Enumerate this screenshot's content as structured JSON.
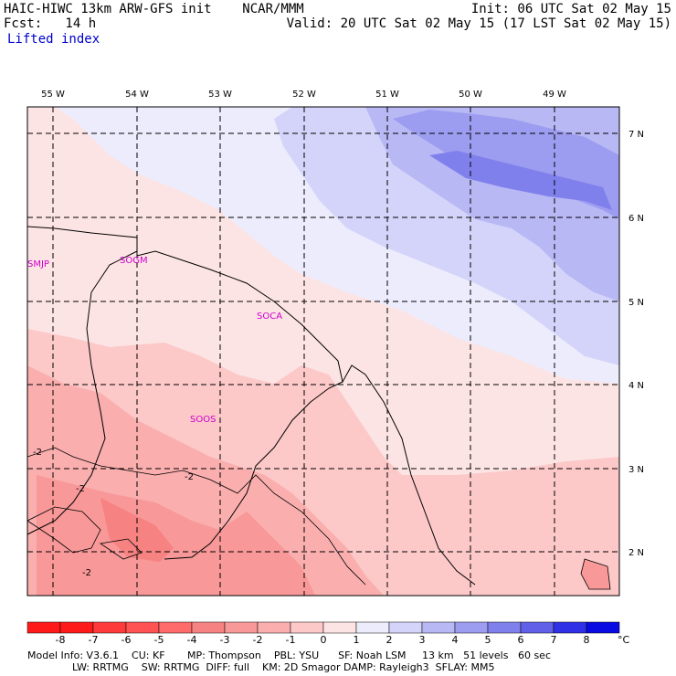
{
  "header": {
    "model_line": "HAIC-HIWC 13km ARW-GFS init    NCAR/MMM",
    "fcst_line": "Fcst:   14 h",
    "field_name": "Lifted index",
    "init_line": "Init: 06 UTC Sat 02 May 15",
    "valid_line": "Valid: 20 UTC Sat 02 May 15 (17 LST Sat 02 May 15)"
  },
  "map": {
    "lon_labels": [
      "55 W",
      "54 W",
      "53 W",
      "52 W",
      "51 W",
      "50 W",
      "49 W"
    ],
    "lat_labels": [
      "7 N",
      "6 N",
      "5 N",
      "4 N",
      "3 N",
      "2 N"
    ],
    "stations": [
      "SMJP",
      "SOGM",
      "SOCA",
      "SOOS"
    ],
    "contour_labels": [
      "-2",
      "-2",
      "-2",
      "-2"
    ],
    "colors": {
      "border": "#000000",
      "grid": "#000000",
      "station": "#cc00cc"
    }
  },
  "colorbar": {
    "labels": [
      "-8",
      "-7",
      "-6",
      "-5",
      "-4",
      "-3",
      "-2",
      "-1",
      "0",
      "1",
      "2",
      "3",
      "4",
      "5",
      "6",
      "7",
      "8"
    ],
    "unit": "°C",
    "colors": [
      "#ff1a1a",
      "#ff3a3a",
      "#ff5252",
      "#ff6a6a",
      "#f78282",
      "#f89898",
      "#faaeae",
      "#fcc8c8",
      "#fde4e4",
      "#ececfc",
      "#d4d4fa",
      "#b8b8f5",
      "#9c9cf0",
      "#8080ec",
      "#6060e8",
      "#3030e6",
      "#0a0ae2"
    ]
  },
  "info": {
    "line1": "Model Info: V3.6.1    CU: KF       MP: Thompson    PBL: YSU      SF: Noah LSM     13 km   51 levels   60 sec",
    "line2": "              LW: RRTMG    SW: RRTMG  DIFF: full    KM: 2D Smagor DAMP: Rayleigh3  SFLAY: MM5"
  }
}
